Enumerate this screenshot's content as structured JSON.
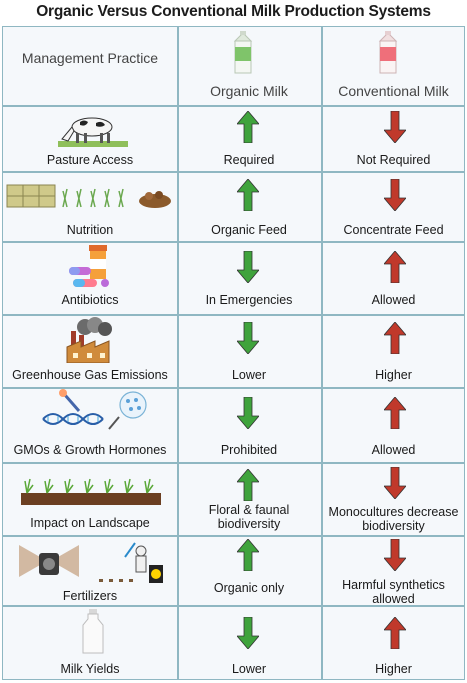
{
  "title": "Organic Versus Conventional Milk Production Systems",
  "headers": {
    "practice": "Management Practice",
    "organic": "Organic Milk",
    "conventional": "Conventional Milk"
  },
  "colors": {
    "up_green": "#3fa33c",
    "down_red": "#c0392b",
    "border": "#8fb7c2"
  },
  "rows": [
    {
      "practice": "Pasture Access",
      "icon": "cow-icon",
      "organic": "Required",
      "organic_dir": "up",
      "conventional": "Not Required",
      "conventional_dir": "down"
    },
    {
      "practice": "Nutrition",
      "icon": "feed-icon",
      "organic": "Organic Feed",
      "organic_dir": "up",
      "conventional": "Concentrate Feed",
      "conventional_dir": "down"
    },
    {
      "practice": "Antibiotics",
      "icon": "pills-icon",
      "organic": "In Emergencies",
      "organic_dir": "down",
      "conventional": "Allowed",
      "conventional_dir": "up"
    },
    {
      "practice": "Greenhouse Gas Emissions",
      "icon": "factory-icon",
      "organic": "Lower",
      "organic_dir": "down",
      "conventional": "Higher",
      "conventional_dir": "up"
    },
    {
      "practice": "GMOs & Growth Hormones",
      "icon": "dna-icon",
      "organic": "Prohibited",
      "organic_dir": "down",
      "conventional": "Allowed",
      "conventional_dir": "up"
    },
    {
      "practice": "Impact on Landscape",
      "icon": "landscape-icon",
      "organic": "Floral & faunal biodiversity",
      "organic_dir": "up",
      "conventional": "Monocultures decrease biodiversity",
      "conventional_dir": "down"
    },
    {
      "practice": "Fertilizers",
      "icon": "sprayer-icon",
      "organic": "Organic only",
      "organic_dir": "up",
      "conventional": "Harmful synthetics allowed",
      "conventional_dir": "down"
    },
    {
      "practice": "Milk Yields",
      "icon": "milk-bottle-icon",
      "organic": "Lower",
      "organic_dir": "down",
      "conventional": "Higher",
      "conventional_dir": "up"
    }
  ]
}
